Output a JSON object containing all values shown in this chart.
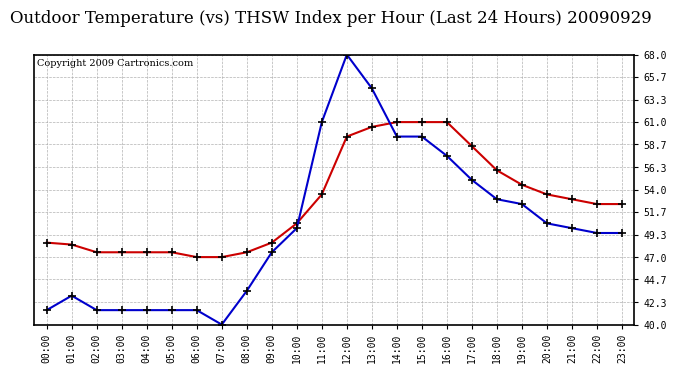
{
  "title": "Outdoor Temperature (vs) THSW Index per Hour (Last 24 Hours) 20090929",
  "copyright": "Copyright 2009 Cartronics.com",
  "hours": [
    0,
    1,
    2,
    3,
    4,
    5,
    6,
    7,
    8,
    9,
    10,
    11,
    12,
    13,
    14,
    15,
    16,
    17,
    18,
    19,
    20,
    21,
    22,
    23
  ],
  "hour_labels": [
    "00:00",
    "01:00",
    "02:00",
    "03:00",
    "04:00",
    "05:00",
    "06:00",
    "07:00",
    "08:00",
    "09:00",
    "10:00",
    "11:00",
    "12:00",
    "13:00",
    "14:00",
    "15:00",
    "16:00",
    "17:00",
    "18:00",
    "19:00",
    "20:00",
    "21:00",
    "22:00",
    "23:00"
  ],
  "temp_red": [
    48.5,
    48.3,
    47.5,
    47.5,
    47.5,
    47.5,
    47.0,
    47.0,
    47.5,
    48.5,
    50.5,
    53.5,
    59.5,
    60.5,
    61.0,
    61.0,
    61.0,
    58.5,
    56.0,
    54.5,
    53.5,
    53.0,
    52.5,
    52.5
  ],
  "thsw_blue": [
    41.5,
    43.0,
    41.5,
    41.5,
    41.5,
    41.5,
    41.5,
    40.0,
    43.5,
    47.5,
    50.0,
    61.0,
    68.0,
    64.5,
    59.5,
    59.5,
    57.5,
    55.0,
    53.0,
    52.5,
    50.5,
    50.0,
    49.5,
    49.5
  ],
  "red_color": "#cc0000",
  "blue_color": "#0000cc",
  "marker": "+",
  "markersize": 6,
  "markeredgewidth": 1.2,
  "linewidth": 1.5,
  "ylim": [
    40.0,
    68.0
  ],
  "yticks": [
    40.0,
    42.3,
    44.7,
    47.0,
    49.3,
    51.7,
    54.0,
    56.3,
    58.7,
    61.0,
    63.3,
    65.7,
    68.0
  ],
  "background_color": "#ffffff",
  "grid_color": "#aaaaaa",
  "title_fontsize": 12,
  "copyright_fontsize": 7,
  "tick_fontsize": 7
}
